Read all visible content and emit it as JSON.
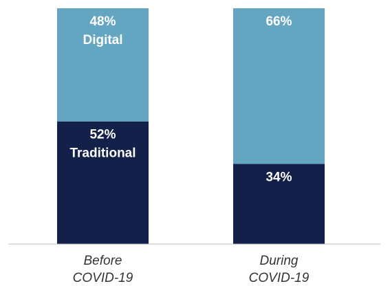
{
  "chart_data": {
    "type": "bar",
    "stacked": true,
    "categories": [
      [
        "Before",
        "COVID-19"
      ],
      [
        "During",
        "COVID-19"
      ]
    ],
    "series": [
      {
        "name": "Traditional",
        "values": [
          52,
          34
        ],
        "color": "#13214a",
        "labels": [
          [
            "52%",
            "Traditional"
          ],
          [
            "34%"
          ]
        ]
      },
      {
        "name": "Digital",
        "values": [
          48,
          66
        ],
        "color": "#64a5c1",
        "labels": [
          [
            "48%",
            "Digital"
          ],
          [
            "66%"
          ]
        ]
      }
    ],
    "ylim": [
      0,
      100
    ],
    "grid": false,
    "legend": "none",
    "baseline_color": "#bfbfbf"
  }
}
